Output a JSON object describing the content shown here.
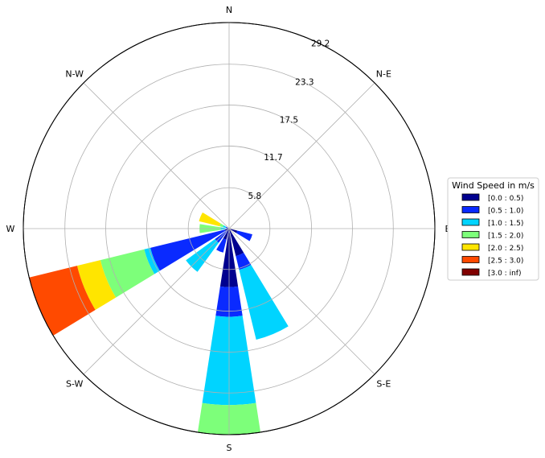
{
  "chart_data": {
    "type": "windrose",
    "title": "",
    "directions": [
      "N",
      "N-E",
      "E",
      "S-E",
      "S",
      "S-W",
      "W",
      "N-W"
    ],
    "radial_ticks": [
      "5.8",
      "11.7",
      "17.5",
      "23.3",
      "29.2"
    ],
    "radial_max": 29.2,
    "legend": {
      "title": "Wind Speed in m/s",
      "placement": "right",
      "bins": [
        {
          "label": "[0.0 : 0.5)",
          "color": "#00008f"
        },
        {
          "label": "[0.5 : 1.0)",
          "color": "#0a2aff"
        },
        {
          "label": "[1.0 : 1.5)",
          "color": "#00d4ff"
        },
        {
          "label": "[1.5 : 2.0)",
          "color": "#7dff7a"
        },
        {
          "label": "[2.0 : 2.5)",
          "color": "#ffe500"
        },
        {
          "label": "[2.5 : 3.0)",
          "color": "#ff4a00"
        },
        {
          "label": "[3.0 : inf)",
          "color": "#800000"
        }
      ]
    },
    "sectors": [
      {
        "direction_deg": 112.5,
        "cumulative": [
          1.2,
          3.4
        ]
      },
      {
        "direction_deg": 157.5,
        "cumulative": [
          4.0,
          6.0,
          16.2
        ]
      },
      {
        "direction_deg": 180.0,
        "cumulative": [
          8.3,
          12.5,
          25.0,
          29.2
        ]
      },
      {
        "direction_deg": 202.5,
        "cumulative": [
          1.6,
          3.5
        ]
      },
      {
        "direction_deg": 225.0,
        "cumulative": [
          0.4,
          2.5,
          7.6
        ]
      },
      {
        "direction_deg": 247.5,
        "cumulative": [
          0.6,
          11.5,
          12.4,
          18.8,
          22.2,
          29.2
        ]
      },
      {
        "direction_deg": 270.0,
        "cumulative": [
          0.2,
          0.4,
          1.2,
          4.2
        ]
      },
      {
        "direction_deg": 292.5,
        "cumulative": [
          0.2,
          0.5,
          0.9,
          1.4,
          4.4
        ]
      }
    ]
  }
}
